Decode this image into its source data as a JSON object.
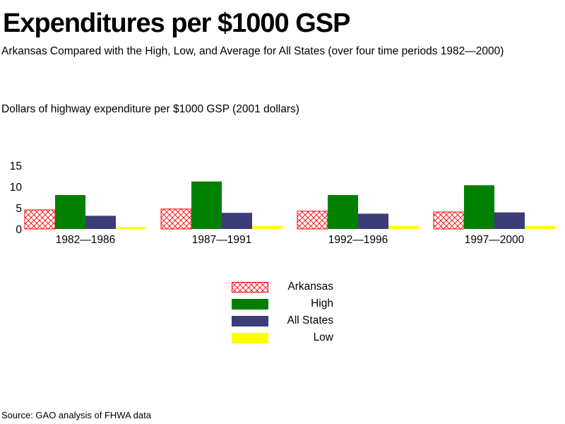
{
  "chart_data": {
    "type": "bar",
    "title": "Expenditures per $1000 GSP",
    "subtitle": "Arkansas Compared with the High, Low, and Average for All States (over four time periods 1982—2000)",
    "ylabel": "Dollars of highway expenditure per $1000 GSP  (2001 dollars)",
    "xlabel": "",
    "categories": [
      "1982—1986",
      "1987—1991",
      "1992—1996",
      "1997—2000"
    ],
    "series": [
      {
        "name": "Arkansas",
        "values": [
          4.5,
          4.7,
          4.2,
          4.0
        ],
        "color": "#ff0000",
        "pattern": "crosshatch"
      },
      {
        "name": "High",
        "values": [
          8.0,
          11.2,
          8.0,
          10.3
        ],
        "color": "#008000",
        "pattern": "solid"
      },
      {
        "name": "All States",
        "values": [
          3.1,
          3.8,
          3.6,
          3.9
        ],
        "color": "#3c3c78",
        "pattern": "solid"
      },
      {
        "name": "Low",
        "values": [
          0.4,
          0.7,
          0.7,
          0.7
        ],
        "color": "#ffff00",
        "pattern": "solid"
      }
    ],
    "yticks": [
      0,
      5,
      10,
      15
    ],
    "ylim": [
      0,
      15
    ],
    "grid": false,
    "legend_position": "bottom-center"
  },
  "source": "Source: GAO analysis of FHWA data"
}
